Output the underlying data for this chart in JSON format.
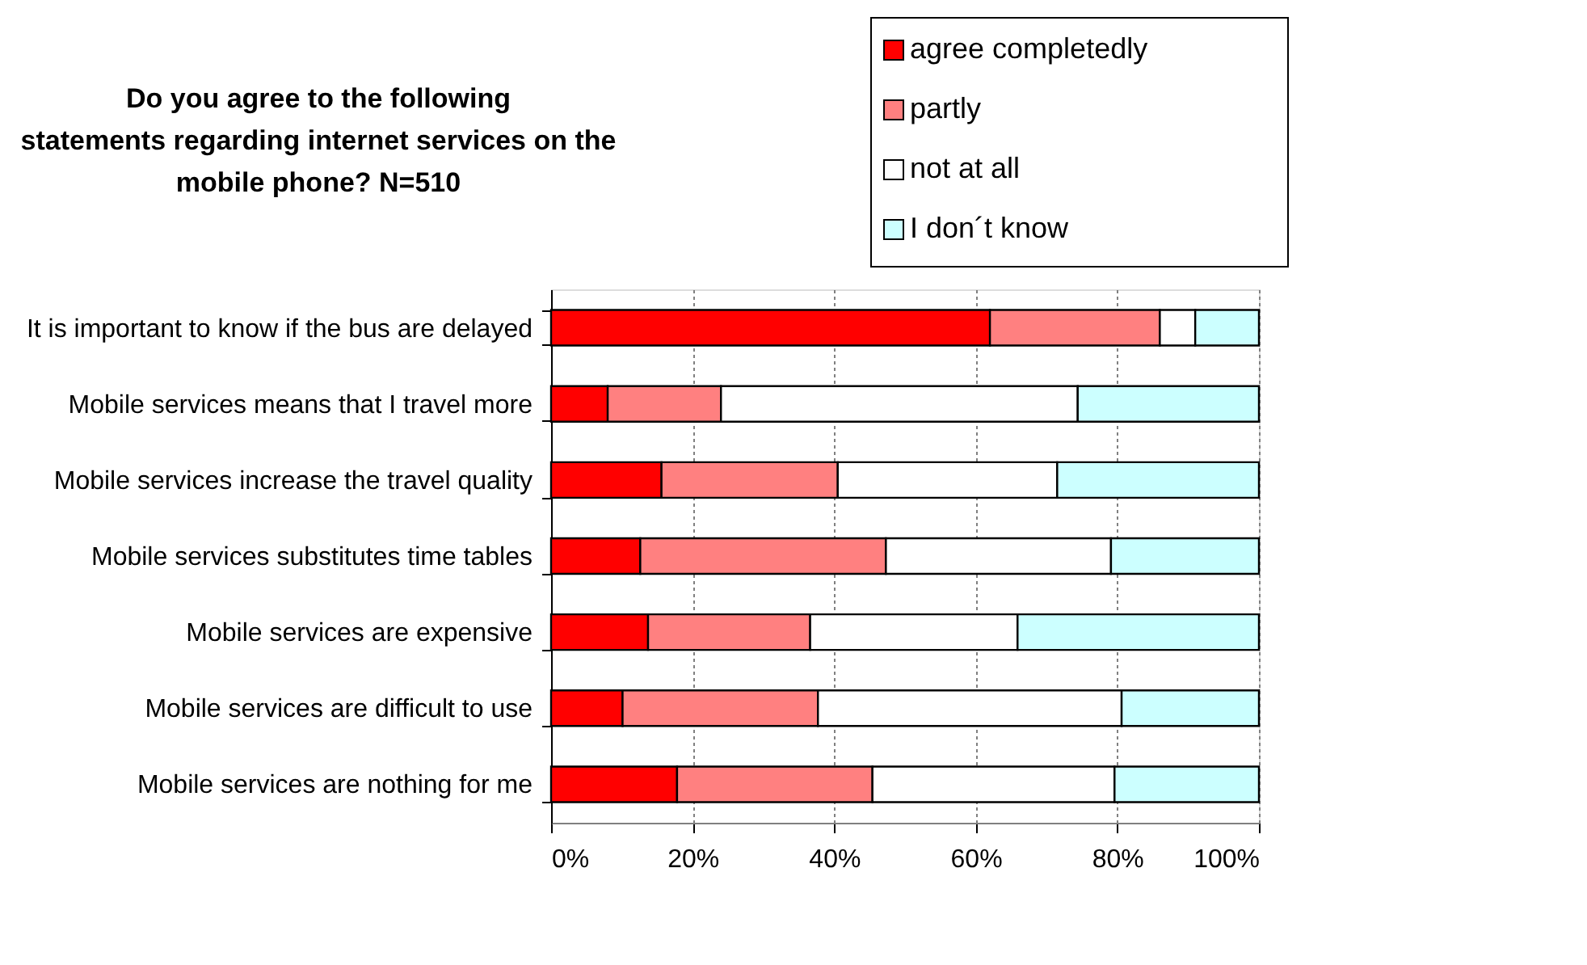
{
  "chart_data": {
    "type": "bar",
    "orientation": "horizontal",
    "stacked": true,
    "title": "Do you agree to the following\nstatements  regarding internet services on the\nmobile phone? N=510",
    "categories": [
      "It is important to know if the bus are delayed",
      "Mobile services means that I travel more",
      "Mobile services increase the travel quality ",
      "Mobile services substitutes time tables",
      "Mobile services are expensive",
      "Mobile services are difficult to use",
      "Mobile services are nothing for me"
    ],
    "series": [
      {
        "name": "agree completedly",
        "color": "#ff0000",
        "values": [
          62,
          8,
          15.6,
          12.6,
          13.7,
          10.1,
          17.8
        ]
      },
      {
        "name": "partly",
        "color": "#ff8080",
        "values": [
          24,
          16,
          24.9,
          34.7,
          22.9,
          27.6,
          27.6
        ]
      },
      {
        "name": "not at all",
        "color": "#ffffff",
        "values": [
          5,
          50.4,
          31,
          31.8,
          29.3,
          42.9,
          34.2
        ]
      },
      {
        "name": "I don´t know",
        "color": "#ccffff",
        "values": [
          9,
          25.6,
          28.5,
          20.9,
          34.1,
          19.4,
          20.4
        ]
      }
    ],
    "xlim": [
      0,
      100
    ],
    "xticks": [
      {
        "value": 0,
        "label": "0%"
      },
      {
        "value": 20,
        "label": "20%"
      },
      {
        "value": 40,
        "label": "40%"
      },
      {
        "value": 60,
        "label": "60%"
      },
      {
        "value": 80,
        "label": "80%"
      },
      {
        "value": 100,
        "label": "100%"
      }
    ],
    "grid": "x",
    "legend": "top right"
  }
}
